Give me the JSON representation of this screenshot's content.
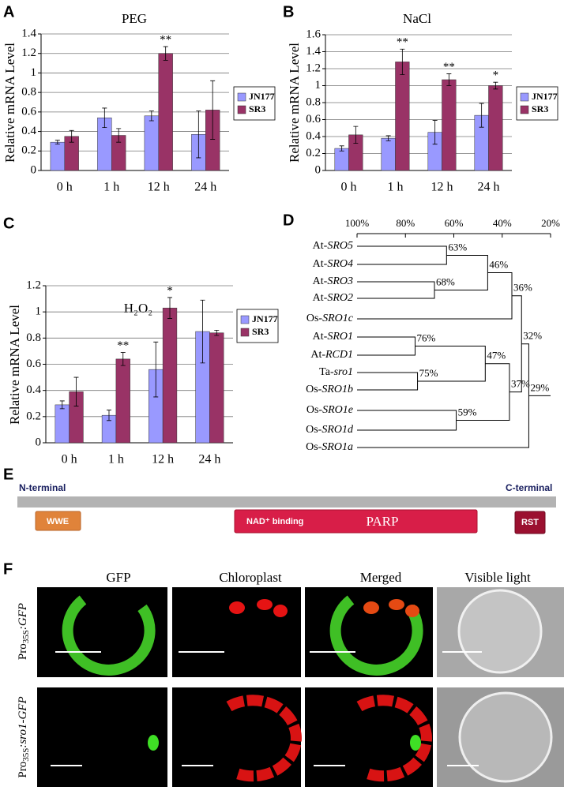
{
  "chart_data": [
    {
      "type": "bar",
      "panel": "A",
      "title": "PEG",
      "y_label": "Relative mRNA Level",
      "categories": [
        "0 h",
        "1 h",
        "12 h",
        "24 h"
      ],
      "series": [
        {
          "name": "JN177",
          "color": "#9999ff",
          "values": [
            0.29,
            0.54,
            0.56,
            0.37
          ],
          "errors": [
            0.02,
            0.1,
            0.05,
            0.24
          ],
          "annotations": [
            null,
            null,
            null,
            null
          ]
        },
        {
          "name": "SR3",
          "color": "#993366",
          "values": [
            0.35,
            0.36,
            1.2,
            0.62
          ],
          "errors": [
            0.06,
            0.07,
            0.07,
            0.3
          ],
          "annotations": [
            null,
            null,
            "**",
            null
          ]
        }
      ],
      "ylim": [
        0,
        1.4
      ],
      "yticks": [
        0,
        0.2,
        0.4,
        0.6,
        0.8,
        1,
        1.2,
        1.4
      ],
      "grid": true,
      "legend": "right"
    },
    {
      "type": "bar",
      "panel": "B",
      "title": "NaCl",
      "y_label": "Relative mRNA Level",
      "categories": [
        "0 h",
        "1 h",
        "12 h",
        "24 h"
      ],
      "series": [
        {
          "name": "JN177",
          "color": "#9999ff",
          "values": [
            0.26,
            0.38,
            0.45,
            0.65
          ],
          "errors": [
            0.03,
            0.03,
            0.14,
            0.14
          ],
          "annotations": [
            null,
            null,
            null,
            null
          ]
        },
        {
          "name": "SR3",
          "color": "#993366",
          "values": [
            0.42,
            1.28,
            1.07,
            1.0
          ],
          "errors": [
            0.1,
            0.15,
            0.07,
            0.04
          ],
          "annotations": [
            null,
            "**",
            "**",
            "*"
          ]
        }
      ],
      "ylim": [
        0,
        1.6
      ],
      "yticks": [
        0,
        0.2,
        0.4,
        0.6,
        0.8,
        1,
        1.2,
        1.4,
        1.6
      ],
      "grid": true,
      "legend": "right"
    },
    {
      "type": "bar",
      "panel": "C",
      "title": "H₂O₂",
      "y_label": "Relative mRNA Level",
      "categories": [
        "0 h",
        "1 h",
        "12 h",
        "24 h"
      ],
      "series": [
        {
          "name": "JN177",
          "color": "#9999ff",
          "values": [
            0.29,
            0.21,
            0.56,
            0.85
          ],
          "errors": [
            0.03,
            0.04,
            0.21,
            0.24
          ],
          "annotations": [
            null,
            null,
            null,
            null
          ]
        },
        {
          "name": "SR3",
          "color": "#993366",
          "values": [
            0.39,
            0.64,
            1.03,
            0.84
          ],
          "errors": [
            0.11,
            0.05,
            0.08,
            0.02
          ],
          "annotations": [
            null,
            "**",
            "*",
            null
          ]
        }
      ],
      "ylim": [
        0,
        1.2
      ],
      "yticks": [
        0,
        0.2,
        0.4,
        0.6,
        0.8,
        1,
        1.2
      ],
      "grid": true,
      "legend": "right"
    },
    {
      "type": "dendrogram",
      "panel": "D",
      "xlim": [
        100,
        20
      ],
      "xticks": [
        {
          "value": 100,
          "label": "100%"
        },
        {
          "value": 80,
          "label": "80%"
        },
        {
          "value": 60,
          "label": "60%"
        },
        {
          "value": 40,
          "label": "40%"
        },
        {
          "value": 20,
          "label": "20%"
        }
      ],
      "leaves": [
        {
          "prefix": "At-",
          "gene": "SRO5"
        },
        {
          "prefix": "At-",
          "gene": "SRO4"
        },
        {
          "prefix": "At-",
          "gene": "SRO3"
        },
        {
          "prefix": "At-",
          "gene": "SRO2"
        },
        {
          "prefix": "Os-",
          "gene": "SRO1c"
        },
        {
          "prefix": "At-",
          "gene": "SRO1"
        },
        {
          "prefix": "At-",
          "gene": "RCD1"
        },
        {
          "prefix": "Ta-",
          "gene": "sro1"
        },
        {
          "prefix": "Os-",
          "gene": "SRO1b"
        },
        {
          "prefix": "Os-",
          "gene": "SRO1e"
        },
        {
          "prefix": "Os-",
          "gene": "SRO1d"
        },
        {
          "prefix": "Os-",
          "gene": "SRO1a"
        }
      ],
      "nodes": [
        {
          "value": 63,
          "label": "63%",
          "children": [
            0,
            1
          ]
        },
        {
          "value": 68,
          "label": "68%",
          "children": [
            2,
            3
          ]
        },
        {
          "value": 46,
          "label": "46%",
          "children": [
            12,
            13
          ]
        },
        {
          "value": 36,
          "label": "36%",
          "children": [
            14,
            4
          ]
        },
        {
          "value": 76,
          "label": "76%",
          "children": [
            5,
            6
          ]
        },
        {
          "value": 75,
          "label": "75%",
          "children": [
            7,
            8
          ]
        },
        {
          "value": 47,
          "label": "47%",
          "children": [
            16,
            17
          ]
        },
        {
          "value": 59,
          "label": "59%",
          "children": [
            9,
            10
          ]
        },
        {
          "value": 37,
          "label": "37%",
          "children": [
            18,
            19
          ]
        },
        {
          "value": 32,
          "label": "32%",
          "children": [
            15,
            20
          ]
        },
        {
          "value": 29,
          "label": "29%",
          "children": [
            21,
            11
          ]
        }
      ]
    }
  ],
  "panel_e": {
    "letter": "E",
    "n_terminal": "N-terminal",
    "c_terminal": "C-terminal",
    "wwe": "WWE",
    "nad": "NAD⁺ binding",
    "parp": "PARP",
    "rst": "RST"
  },
  "panel_f": {
    "letter": "F",
    "columns": [
      "GFP",
      "Chloroplast",
      "Merged",
      "Visible light"
    ],
    "rows": [
      {
        "prefix": "Pro",
        "sub": "35S",
        "suffix": ":GFP"
      },
      {
        "prefix": "Pro",
        "sub": "35S",
        "suffix": ":sro1-GFP"
      }
    ]
  }
}
